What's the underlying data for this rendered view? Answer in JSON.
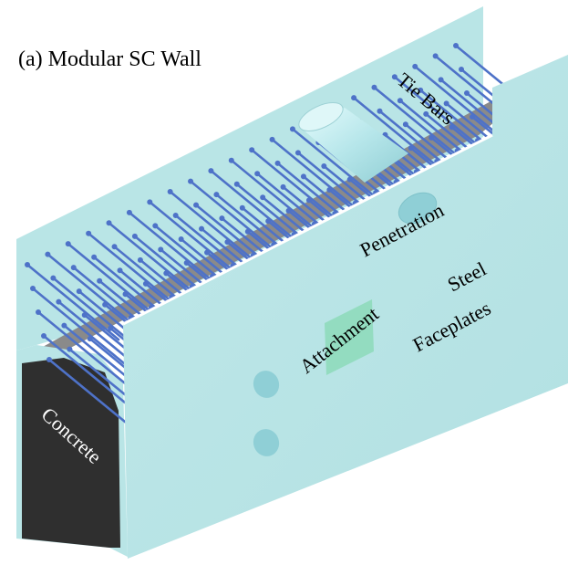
{
  "figure": {
    "title": "(a) Modular SC Wall",
    "labels": {
      "tie_bars": "Tie Bars",
      "penetration": "Penetration",
      "steel": "Steel",
      "faceplates": "Faceplates",
      "attachment": "Attachment",
      "concrete": "Concrete"
    }
  },
  "colors": {
    "faceplate": "#b9e5e6",
    "faceplate_edge": "#a6d2d4",
    "concrete_top": "#8a8a8a",
    "concrete_face": "#2f2f2f",
    "tie_bar": "#4e72c8",
    "attachment_plate": "#93dcc0",
    "penetration_sleeve": "#c8f0f2"
  }
}
